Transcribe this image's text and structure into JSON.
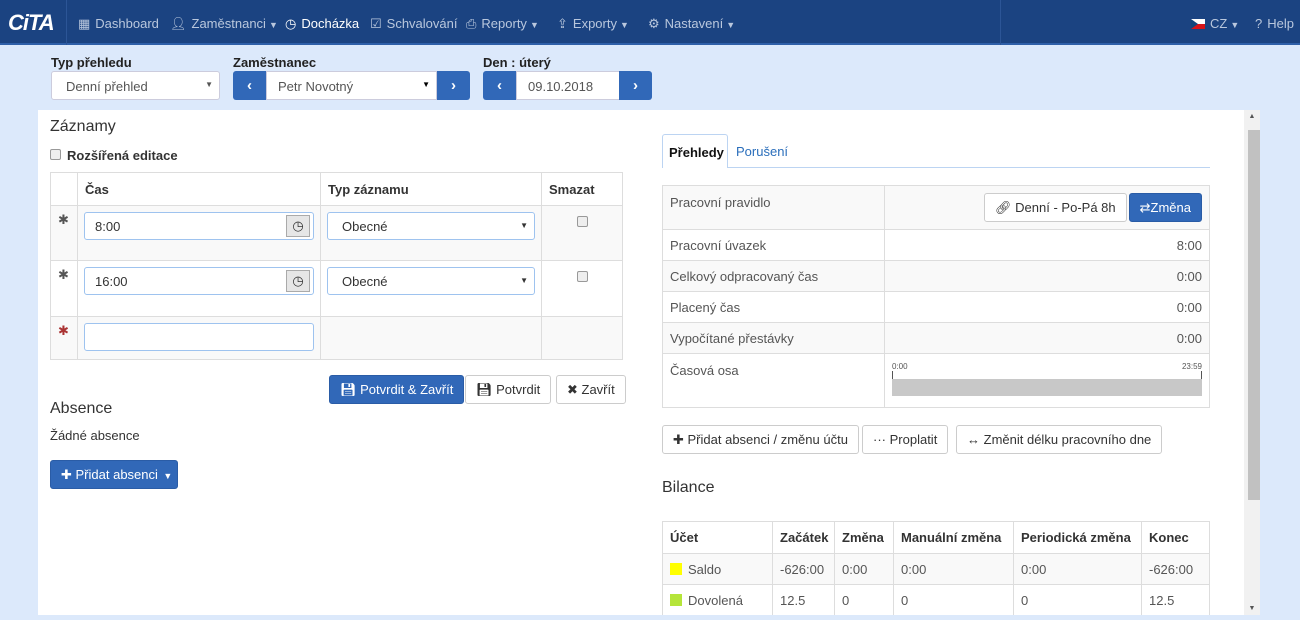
{
  "nav": {
    "logo": "CiTA",
    "items": [
      {
        "label": "Dashboard",
        "icon": "grid-icon",
        "dropdown": false
      },
      {
        "label": "Zaměstnanci",
        "icon": "user-icon",
        "dropdown": true
      },
      {
        "label": "Docházka",
        "icon": "clock-icon",
        "dropdown": false,
        "active": true
      },
      {
        "label": "Schvalování",
        "icon": "check-square-icon",
        "dropdown": false
      },
      {
        "label": "Reporty",
        "icon": "printer-icon",
        "dropdown": true
      },
      {
        "label": "Exporty",
        "icon": "export-icon",
        "dropdown": true
      },
      {
        "label": "Nastavení",
        "icon": "gear-icon",
        "dropdown": true
      }
    ],
    "language": "CZ",
    "help": "Help"
  },
  "filters": {
    "type_label": "Typ přehledu",
    "type_value": "Denní přehled",
    "employee_label": "Zaměstnanec",
    "employee_value": "Petr Novotný",
    "day_label": "Den : úterý",
    "day_value": "09.10.2018"
  },
  "records": {
    "title": "Záznamy",
    "extended_edit": "Rozšířená editace",
    "columns": [
      "Čas",
      "Typ záznamu",
      "Smazat"
    ],
    "rows": [
      {
        "time": "8:00",
        "type": "Obecné"
      },
      {
        "time": "16:00",
        "type": "Obecné"
      }
    ],
    "confirm_close": "Potvrdit & Zavřít",
    "confirm": "Potvrdit",
    "close": "Zavřít"
  },
  "absence": {
    "title": "Absence",
    "empty": "Žádné absence",
    "add": "Přidat absenci"
  },
  "tabs": [
    "Přehledy",
    "Porušení"
  ],
  "overview": {
    "rule_label": "Pracovní pravidlo",
    "rule_value": "Denní - Po-Pá 8h",
    "change": "Změna",
    "rows": [
      {
        "label": "Pracovní úvazek",
        "value": "8:00"
      },
      {
        "label": "Celkový odpracovaný čas",
        "value": "0:00"
      },
      {
        "label": "Placený čas",
        "value": "0:00"
      },
      {
        "label": "Vypočítané přestávky",
        "value": "0:00"
      }
    ],
    "timeline_label": "Časová osa",
    "timeline_start": "0:00",
    "timeline_end": "23:59"
  },
  "actions": {
    "add_absence": "Přidat absenci / změnu účtu",
    "payout": "Proplatit",
    "change_length": "Změnit délku pracovního dne"
  },
  "balance": {
    "title": "Bilance",
    "columns": [
      "Účet",
      "Začátek",
      "Změna",
      "Manuální změna",
      "Periodická změna",
      "Konec"
    ],
    "rows": [
      {
        "account": "Saldo",
        "color": "#ffff00",
        "start": "-626:00",
        "change": "0:00",
        "manual": "0:00",
        "periodic": "0:00",
        "end": "-626:00"
      },
      {
        "account": "Dovolená",
        "color": "#b5e53a",
        "start": "12.5",
        "change": "0",
        "manual": "0",
        "periodic": "0",
        "end": "12.5"
      }
    ]
  }
}
